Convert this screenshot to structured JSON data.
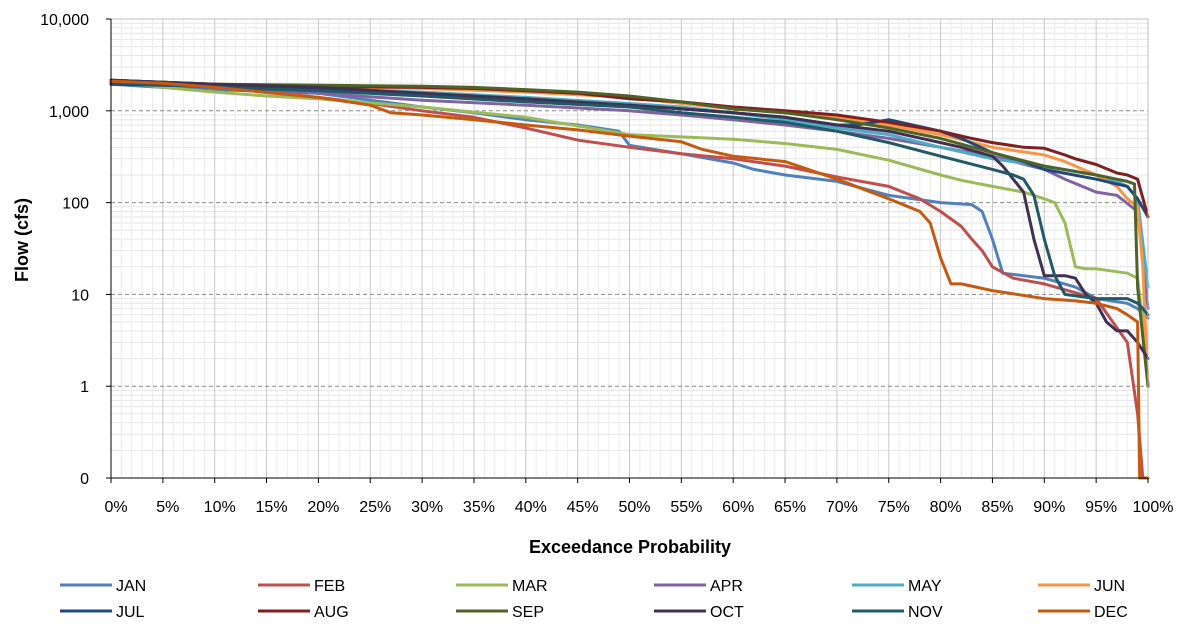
{
  "chart_data": {
    "type": "line",
    "title": "",
    "xlabel": "Exceedance Probability",
    "ylabel": "Flow (cfs)",
    "y_scale": "log",
    "ylim": [
      0.1,
      10000
    ],
    "xlim": [
      0,
      100
    ],
    "grid": true,
    "legend_position": "bottom",
    "x_ticks": [
      "0%",
      "5%",
      "10%",
      "15%",
      "20%",
      "25%",
      "30%",
      "35%",
      "40%",
      "45%",
      "50%",
      "55%",
      "60%",
      "65%",
      "70%",
      "75%",
      "80%",
      "85%",
      "90%",
      "95%",
      "100%"
    ],
    "y_ticks": [
      {
        "value": 0.1,
        "label": "0"
      },
      {
        "value": 1,
        "label": "1"
      },
      {
        "value": 10,
        "label": "10"
      },
      {
        "value": 100,
        "label": "100"
      },
      {
        "value": 1000,
        "label": "1,000"
      },
      {
        "value": 10000,
        "label": "10,000"
      }
    ],
    "series": [
      {
        "name": "JAN",
        "color": "#4f81bd",
        "x": [
          0,
          5,
          10,
          20,
          30,
          35,
          40,
          45,
          49,
          50,
          55,
          60,
          62,
          65,
          70,
          75,
          80,
          83,
          84,
          85,
          86,
          90,
          93,
          95,
          98,
          99,
          100
        ],
        "y": [
          1950,
          1800,
          1700,
          1550,
          1100,
          950,
          800,
          700,
          600,
          420,
          340,
          270,
          230,
          200,
          170,
          120,
          100,
          95,
          80,
          40,
          17,
          15,
          12,
          9,
          8,
          7,
          5.5
        ]
      },
      {
        "name": "FEB",
        "color": "#c0504d",
        "x": [
          0,
          5,
          10,
          20,
          25,
          30,
          35,
          40,
          45,
          50,
          55,
          60,
          65,
          70,
          75,
          78,
          80,
          82,
          83,
          84,
          85,
          87,
          90,
          95,
          98,
          99,
          99.5,
          100
        ],
        "y": [
          2100,
          1950,
          1800,
          1400,
          1200,
          1000,
          850,
          650,
          480,
          400,
          340,
          300,
          250,
          190,
          150,
          110,
          80,
          55,
          40,
          30,
          20,
          15,
          13,
          9,
          3,
          0.5,
          0.1,
          0.1
        ]
      },
      {
        "name": "MAR",
        "color": "#9bbb59",
        "x": [
          0,
          5,
          10,
          15,
          20,
          30,
          40,
          50,
          55,
          60,
          65,
          70,
          75,
          80,
          82,
          85,
          88,
          90,
          91,
          92,
          93,
          94,
          95,
          98,
          99,
          99.5,
          100
        ],
        "y": [
          2100,
          1800,
          1600,
          1450,
          1350,
          1100,
          850,
          550,
          520,
          490,
          440,
          380,
          290,
          200,
          175,
          150,
          130,
          110,
          100,
          60,
          20,
          19,
          19,
          17,
          15,
          5,
          1
        ]
      },
      {
        "name": "APR",
        "color": "#8064a2",
        "x": [
          0,
          5,
          10,
          20,
          30,
          40,
          50,
          55,
          60,
          65,
          70,
          75,
          80,
          85,
          90,
          92,
          95,
          97,
          99,
          100
        ],
        "y": [
          2100,
          1950,
          1800,
          1550,
          1300,
          1150,
          1000,
          900,
          800,
          700,
          600,
          500,
          400,
          320,
          230,
          180,
          130,
          120,
          80,
          7
        ]
      },
      {
        "name": "MAY",
        "color": "#4bacc6",
        "x": [
          0,
          5,
          10,
          20,
          30,
          40,
          50,
          55,
          60,
          65,
          70,
          75,
          80,
          85,
          90,
          95,
          97,
          98,
          99,
          100
        ],
        "y": [
          2100,
          1950,
          1850,
          1750,
          1600,
          1400,
          1200,
          1100,
          950,
          800,
          650,
          550,
          400,
          300,
          250,
          200,
          170,
          150,
          110,
          12
        ]
      },
      {
        "name": "JUN",
        "color": "#f79646",
        "x": [
          0,
          5,
          10,
          20,
          30,
          40,
          50,
          55,
          60,
          65,
          70,
          75,
          80,
          85,
          90,
          92,
          95,
          97,
          98,
          99,
          99.5,
          100
        ],
        "y": [
          2150,
          2050,
          1950,
          1850,
          1750,
          1600,
          1400,
          1200,
          1050,
          950,
          850,
          700,
          550,
          400,
          330,
          280,
          200,
          150,
          110,
          90,
          20,
          1
        ]
      },
      {
        "name": "JUL",
        "color": "#1f497d",
        "x": [
          0,
          5,
          10,
          20,
          30,
          40,
          50,
          55,
          60,
          65,
          70,
          72,
          75,
          80,
          82,
          85,
          88,
          90,
          95,
          98,
          99,
          100
        ],
        "y": [
          1950,
          1900,
          1850,
          1700,
          1500,
          1300,
          1150,
          1050,
          950,
          850,
          700,
          700,
          800,
          600,
          500,
          350,
          280,
          230,
          180,
          150,
          110,
          70
        ]
      },
      {
        "name": "AUG",
        "color": "#7f1f1f",
        "x": [
          0,
          5,
          10,
          20,
          30,
          35,
          40,
          45,
          50,
          55,
          60,
          65,
          70,
          75,
          80,
          83,
          85,
          88,
          90,
          92,
          93,
          95,
          97,
          98,
          99,
          100
        ],
        "y": [
          2150,
          2050,
          1950,
          1850,
          1800,
          1750,
          1650,
          1550,
          1350,
          1250,
          1100,
          1000,
          900,
          750,
          600,
          500,
          450,
          400,
          390,
          330,
          300,
          260,
          210,
          200,
          180,
          70
        ]
      },
      {
        "name": "SEP",
        "color": "#4f6228",
        "x": [
          0,
          5,
          10,
          20,
          30,
          35,
          40,
          45,
          50,
          55,
          60,
          65,
          70,
          75,
          80,
          85,
          90,
          95,
          97,
          98,
          98.7,
          99,
          100
        ],
        "y": [
          2150,
          2050,
          1950,
          1900,
          1850,
          1800,
          1700,
          1600,
          1450,
          1250,
          1050,
          950,
          800,
          650,
          500,
          350,
          250,
          200,
          180,
          170,
          160,
          12,
          1
        ]
      },
      {
        "name": "OCT",
        "color": "#403151",
        "x": [
          0,
          5,
          10,
          20,
          30,
          40,
          50,
          55,
          60,
          65,
          70,
          75,
          80,
          82,
          85,
          86,
          87,
          88,
          89,
          90,
          91,
          92,
          93,
          94,
          95,
          96,
          97,
          98,
          99,
          100
        ],
        "y": [
          2150,
          2050,
          1950,
          1800,
          1550,
          1350,
          1150,
          1050,
          950,
          850,
          700,
          600,
          450,
          400,
          320,
          250,
          180,
          130,
          40,
          16,
          16,
          16,
          15,
          10,
          8,
          5,
          4,
          4,
          3,
          2
        ]
      },
      {
        "name": "NOV",
        "color": "#215968",
        "x": [
          0,
          5,
          10,
          20,
          30,
          40,
          50,
          55,
          60,
          65,
          70,
          75,
          80,
          85,
          87,
          88,
          89,
          90,
          91,
          92,
          95,
          98,
          99,
          99.5,
          100
        ],
        "y": [
          2050,
          1950,
          1800,
          1650,
          1450,
          1250,
          1100,
          950,
          850,
          750,
          600,
          450,
          320,
          230,
          200,
          180,
          120,
          40,
          16,
          10,
          9,
          9,
          8,
          7,
          6
        ]
      },
      {
        "name": "DEC",
        "color": "#c55a11",
        "x": [
          0,
          5,
          10,
          20,
          25,
          27,
          30,
          35,
          40,
          45,
          50,
          55,
          57,
          60,
          65,
          70,
          75,
          78,
          79,
          80,
          81,
          82,
          85,
          90,
          93,
          95,
          97,
          98,
          99,
          99.2,
          100
        ],
        "y": [
          2100,
          2000,
          1800,
          1400,
          1150,
          950,
          900,
          800,
          700,
          620,
          530,
          460,
          380,
          320,
          280,
          180,
          110,
          80,
          60,
          25,
          13,
          13,
          11,
          9,
          8.5,
          8,
          7,
          6,
          5,
          0.1,
          0.1
        ]
      }
    ]
  }
}
